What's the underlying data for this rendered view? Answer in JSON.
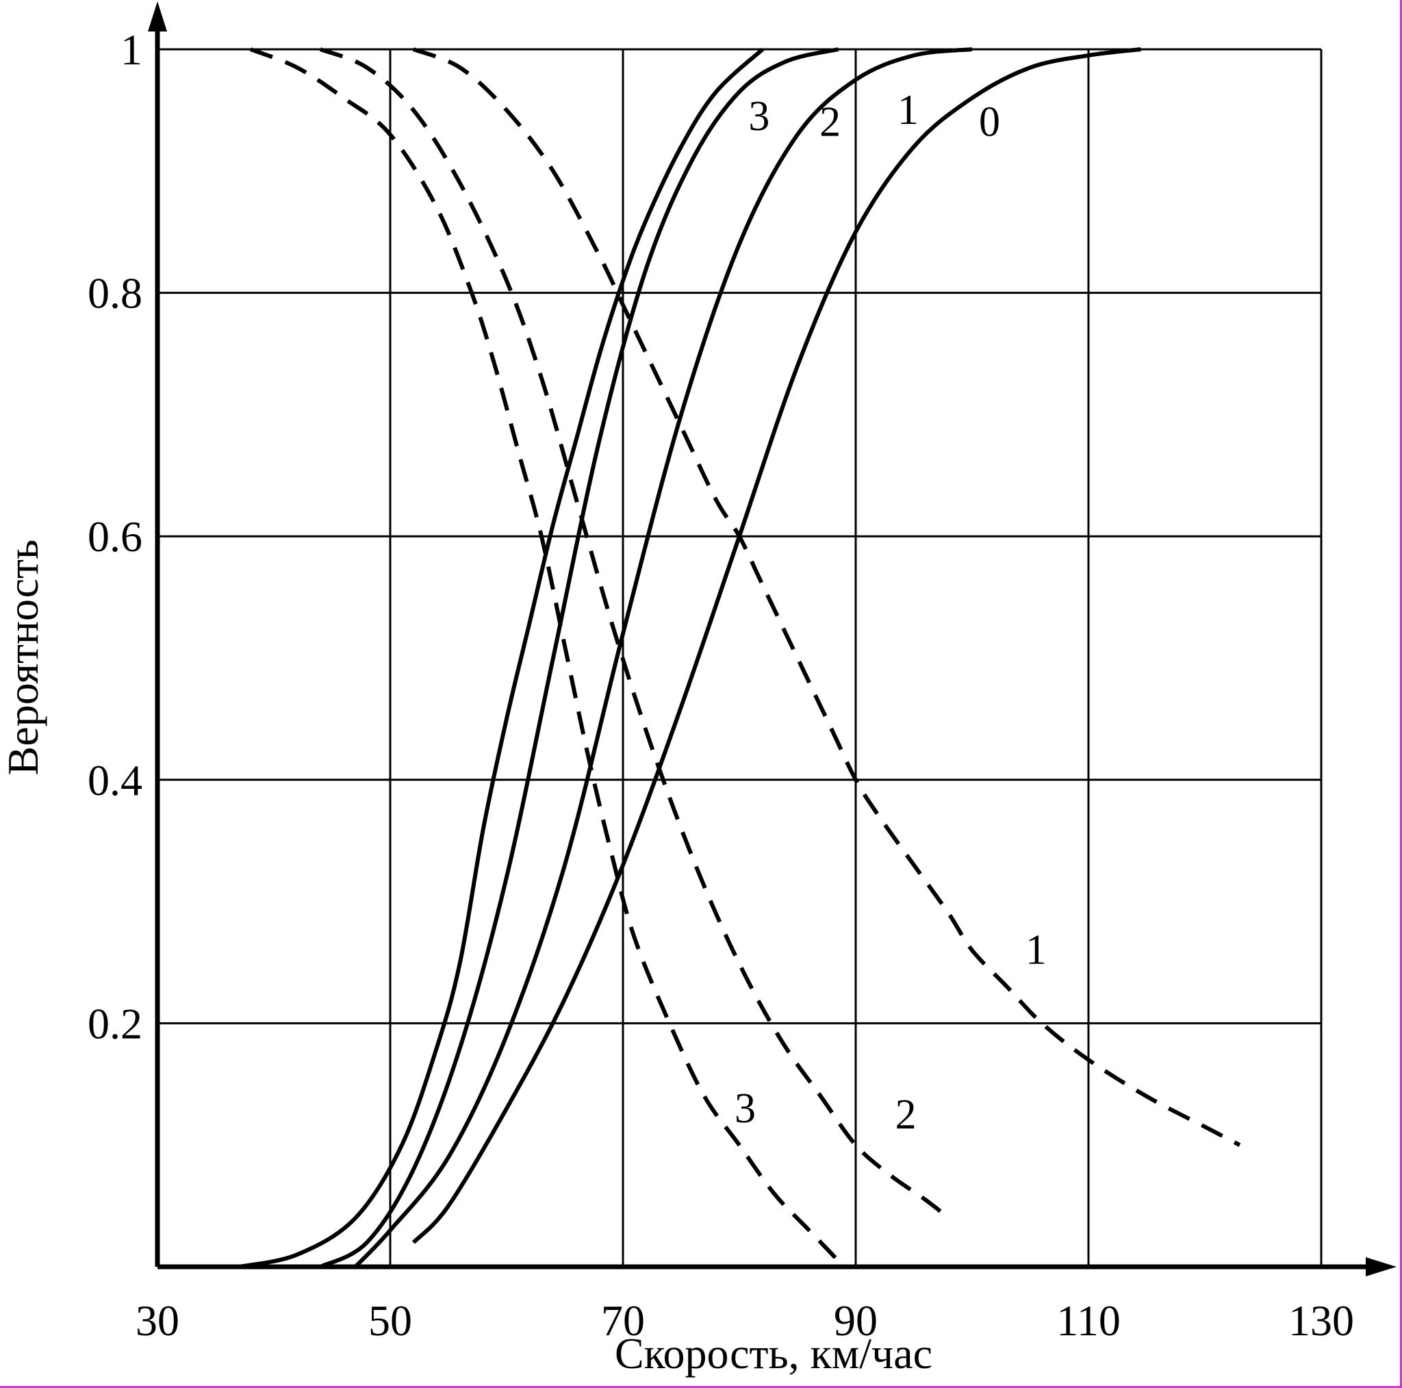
{
  "chart_data": {
    "type": "line",
    "title": "",
    "xlabel": "Скорость, км/час",
    "ylabel": "Вероятность",
    "xlim": [
      30,
      130
    ],
    "ylim": [
      0,
      1
    ],
    "x_ticks": [
      "30",
      "50",
      "70",
      "90",
      "110",
      "130"
    ],
    "y_ticks": [
      "0.2",
      "0.4",
      "0.6",
      "0.8",
      "1"
    ],
    "grid": true,
    "series": [
      {
        "name": "0",
        "style": "solid",
        "label_at": [
          101.5,
          0.94
        ],
        "x": [
          52,
          55,
          60,
          65,
          70,
          75,
          80,
          85,
          90,
          95,
          100,
          105,
          110,
          114.5
        ],
        "y": [
          0.02,
          0.05,
          0.13,
          0.22,
          0.33,
          0.46,
          0.6,
          0.74,
          0.85,
          0.92,
          0.96,
          0.985,
          0.995,
          1.0
        ]
      },
      {
        "name": "1",
        "style": "solid",
        "label_at": [
          94.5,
          0.95
        ],
        "x": [
          47,
          50,
          55,
          60,
          65,
          70,
          75,
          80,
          85,
          90,
          95,
          100
        ],
        "y": [
          0.0,
          0.03,
          0.09,
          0.19,
          0.33,
          0.52,
          0.7,
          0.84,
          0.93,
          0.975,
          0.995,
          1.0
        ]
      },
      {
        "name": "2",
        "style": "solid",
        "label_at": [
          87.8,
          0.94
        ],
        "x": [
          44,
          48,
          52,
          56,
          60,
          64,
          68,
          72,
          76,
          80,
          84,
          88.5
        ],
        "y": [
          0.0,
          0.02,
          0.08,
          0.18,
          0.32,
          0.5,
          0.68,
          0.82,
          0.91,
          0.965,
          0.99,
          1.0
        ]
      },
      {
        "name": "3",
        "style": "solid",
        "label_at": [
          81.7,
          0.945
        ],
        "x": [
          37,
          42,
          47,
          51,
          54,
          56,
          58,
          60,
          62,
          64,
          66,
          68,
          70,
          72,
          75,
          78,
          82
        ],
        "y": [
          0.0,
          0.01,
          0.04,
          0.1,
          0.18,
          0.25,
          0.36,
          0.45,
          0.53,
          0.61,
          0.68,
          0.75,
          0.81,
          0.86,
          0.92,
          0.965,
          1.0
        ]
      },
      {
        "name": "1",
        "style": "dashed",
        "label_at": [
          105.5,
          0.26
        ],
        "x": [
          52,
          56,
          60,
          64,
          68,
          70,
          72,
          75,
          78,
          80,
          82,
          85,
          88,
          90,
          92,
          95,
          98,
          100,
          103,
          106,
          110,
          115,
          120,
          123
        ],
        "y": [
          1.0,
          0.985,
          0.95,
          0.9,
          0.83,
          0.79,
          0.75,
          0.69,
          0.63,
          0.6,
          0.56,
          0.5,
          0.44,
          0.4,
          0.37,
          0.33,
          0.29,
          0.26,
          0.23,
          0.2,
          0.17,
          0.14,
          0.115,
          0.1
        ]
      },
      {
        "name": "2",
        "style": "dashed",
        "label_at": [
          94.3,
          0.125
        ],
        "x": [
          44,
          48,
          52,
          56,
          60,
          63,
          66,
          69,
          72,
          75,
          78,
          81,
          84,
          87,
          90,
          93,
          96,
          98
        ],
        "y": [
          1.0,
          0.985,
          0.95,
          0.89,
          0.81,
          0.73,
          0.63,
          0.53,
          0.44,
          0.36,
          0.29,
          0.23,
          0.18,
          0.14,
          0.1,
          0.075,
          0.055,
          0.04
        ]
      },
      {
        "name": "3",
        "style": "dashed",
        "label_at": [
          80.5,
          0.13
        ],
        "x": [
          38,
          42,
          46,
          50,
          54,
          57,
          59,
          61,
          63,
          65,
          67,
          69,
          71,
          74,
          77,
          80,
          83,
          86,
          89
        ],
        "y": [
          1.0,
          0.985,
          0.96,
          0.93,
          0.87,
          0.8,
          0.74,
          0.67,
          0.6,
          0.51,
          0.42,
          0.34,
          0.27,
          0.2,
          0.14,
          0.1,
          0.06,
          0.03,
          0.0
        ]
      }
    ]
  }
}
